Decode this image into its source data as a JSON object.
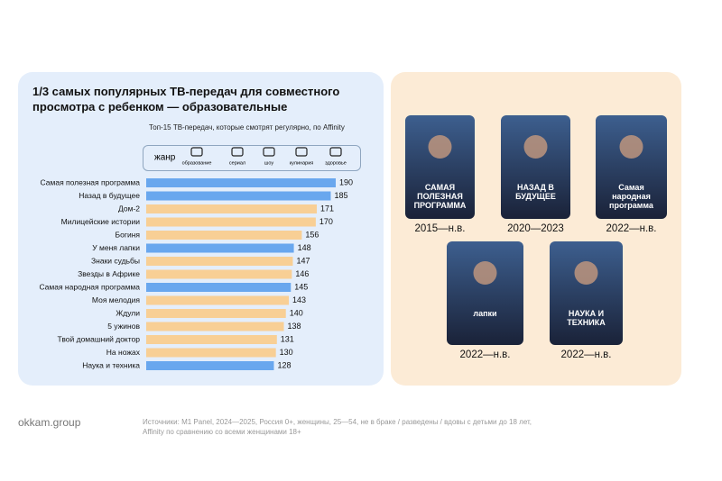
{
  "chart_data": {
    "type": "bar",
    "orientation": "horizontal",
    "title": "1/3 самых популярных ТВ-передач для совместного просмотра с ребенком — образовательные",
    "subtitle": "Топ-15 ТВ-передач, которые смотрят регулярно, по Affinity",
    "legend_title": "жанр",
    "legend": [
      "образование",
      "сериал",
      "шоу",
      "кулинария",
      "здоровье"
    ],
    "categories": [
      "Самая полезная программа",
      "Назад в будущее",
      "Дом-2",
      "Милицейские истории",
      "Богиня",
      "У меня лапки",
      "Знаки судьбы",
      "Звезды в Африке",
      "Самая народная программа",
      "Моя мелодия",
      "Ждули",
      "5 ужинов",
      "Твой домашний доктор",
      "На ножах",
      "Наука и техника"
    ],
    "values": [
      190,
      185,
      171,
      170,
      156,
      148,
      147,
      146,
      145,
      143,
      140,
      138,
      131,
      130,
      128
    ],
    "colors": [
      "#69a7ee",
      "#69a7ee",
      "#f8cf95",
      "#f8cf95",
      "#f8cf95",
      "#69a7ee",
      "#f8cf95",
      "#f8cf95",
      "#69a7ee",
      "#f8cf95",
      "#f8cf95",
      "#f8cf95",
      "#f8cf95",
      "#f8cf95",
      "#69a7ee"
    ]
  },
  "shows": [
    {
      "logo": "САМАЯ ПОЛЕЗНАЯ ПРОГРАММА",
      "years": "2015—н.в."
    },
    {
      "logo": "НАЗАД В БУДУЩЕЕ",
      "years": "2020—2023"
    },
    {
      "logo": "Самая народная программа",
      "years": "2022—н.в."
    },
    {
      "logo": "лапки",
      "years": "2022—н.в."
    },
    {
      "logo": "НАУКА И ТЕХНИКА",
      "years": "2022—н.в."
    }
  ],
  "footer": {
    "brand": "okkam.group",
    "sources": [
      "Источники: M1 Panel, 2024—2025, Россия 0+, женщины, 25—54, не в браке / разведены / вдовы с детьми до 18 лет,",
      "Affinity по сравнению со всеми женщинами 18+"
    ]
  }
}
